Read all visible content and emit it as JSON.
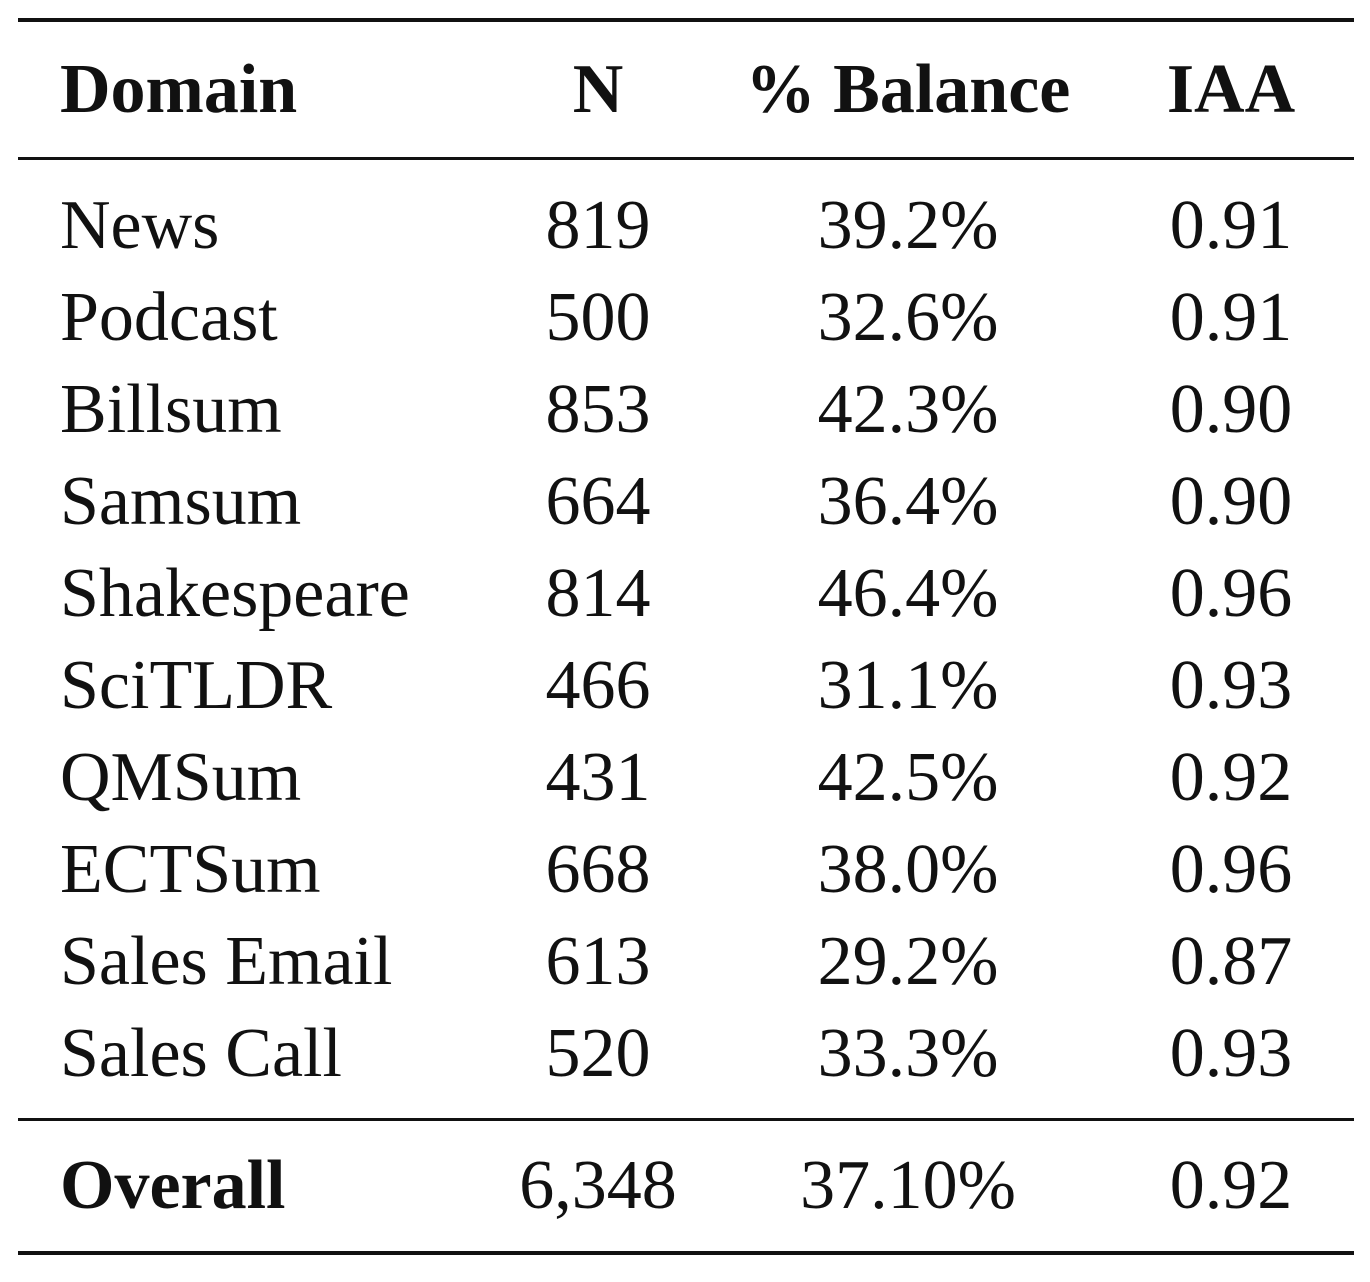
{
  "table": {
    "headers": {
      "domain": "Domain",
      "n": "N",
      "balance": "% Balance",
      "iaa": "IAA"
    },
    "rows": [
      {
        "domain": "News",
        "n": "819",
        "balance": "39.2%",
        "iaa": "0.91"
      },
      {
        "domain": "Podcast",
        "n": "500",
        "balance": "32.6%",
        "iaa": "0.91"
      },
      {
        "domain": "Billsum",
        "n": "853",
        "balance": "42.3%",
        "iaa": "0.90"
      },
      {
        "domain": "Samsum",
        "n": "664",
        "balance": "36.4%",
        "iaa": "0.90"
      },
      {
        "domain": "Shakespeare",
        "n": "814",
        "balance": "46.4%",
        "iaa": "0.96"
      },
      {
        "domain": "SciTLDR",
        "n": "466",
        "balance": "31.1%",
        "iaa": "0.93"
      },
      {
        "domain": "QMSum",
        "n": "431",
        "balance": "42.5%",
        "iaa": "0.92"
      },
      {
        "domain": "ECTSum",
        "n": "668",
        "balance": "38.0%",
        "iaa": "0.96"
      },
      {
        "domain": "Sales Email",
        "n": "613",
        "balance": "29.2%",
        "iaa": "0.87"
      },
      {
        "domain": "Sales Call",
        "n": "520",
        "balance": "33.3%",
        "iaa": "0.93"
      }
    ],
    "overall": {
      "domain": "Overall",
      "n": "6,348",
      "balance": "37.10%",
      "iaa": "0.92"
    }
  }
}
